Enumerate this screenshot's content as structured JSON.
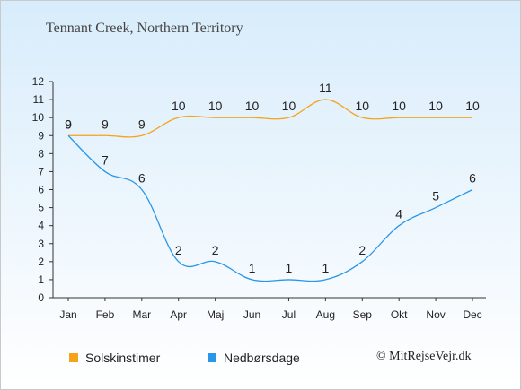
{
  "chart_data": {
    "type": "line",
    "title": "Tennant Creek, Northern Territory",
    "categories": [
      "Jan",
      "Feb",
      "Mar",
      "Apr",
      "Maj",
      "Jun",
      "Jul",
      "Aug",
      "Sep",
      "Okt",
      "Nov",
      "Dec"
    ],
    "series": [
      {
        "name": "Solskinstimer",
        "color": "#f5a31a",
        "values": [
          9,
          9,
          9,
          10,
          10,
          10,
          10,
          11,
          10,
          10,
          10,
          10
        ]
      },
      {
        "name": "Nedbørsdage",
        "color": "#2a96e8",
        "values": [
          9,
          7,
          6,
          2,
          2,
          1,
          1,
          1,
          2,
          4,
          5,
          6
        ]
      }
    ],
    "ylim": [
      0,
      12
    ],
    "yticks": [
      0,
      1,
      2,
      3,
      4,
      5,
      6,
      7,
      8,
      9,
      10,
      11,
      12
    ],
    "grid": false,
    "legend_position": "bottom"
  },
  "credit": "© MitRejseVejr.dk"
}
